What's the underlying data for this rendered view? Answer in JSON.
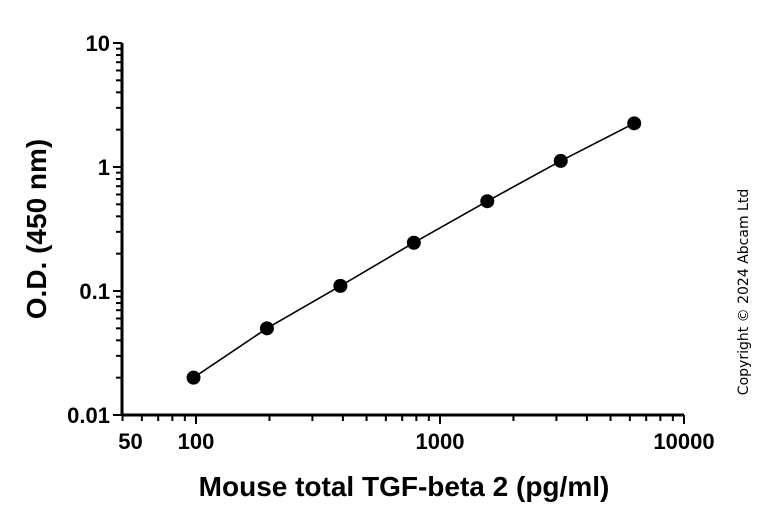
{
  "chart_data": {
    "type": "scatter",
    "xlabel": "Mouse total TGF-beta 2 (pg/ml)",
    "ylabel": "O.D. (450 nm)",
    "x_scale": "log",
    "y_scale": "log",
    "xlim": [
      50,
      10000
    ],
    "ylim": [
      0.01,
      10
    ],
    "x_ticks": [
      "50",
      "100",
      "1000",
      "10000"
    ],
    "y_ticks": [
      "0.01",
      "0.1",
      "1",
      "10"
    ],
    "grid": false,
    "fit_line": true,
    "series": [
      {
        "x": [
          97.7,
          195.3,
          390.6,
          781.25,
          1562.5,
          3125,
          6250
        ],
        "y": [
          0.02,
          0.05,
          0.11,
          0.245,
          0.53,
          1.12,
          2.25
        ]
      }
    ],
    "colors": {
      "points": "#000000",
      "line": "#000000"
    }
  },
  "copyright": "Copyright © 2024 Abcam Ltd"
}
